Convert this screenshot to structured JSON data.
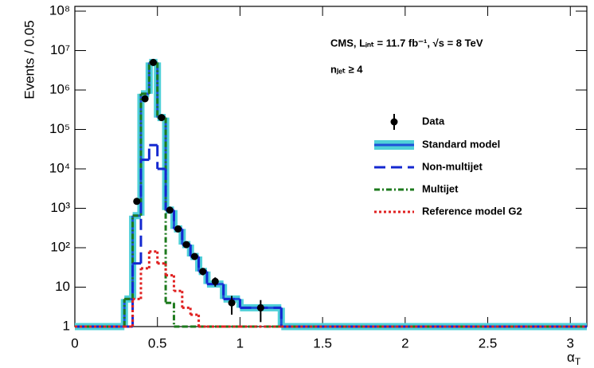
{
  "chart_data": {
    "type": "histogram",
    "annotations": [
      "CMS, Lᵢₙₜ = 11.7 fb⁻¹, √s = 8 TeV",
      "nⱼₑₜ ≥ 4"
    ],
    "xlabel": "αT",
    "ylabel": "Events / 0.05",
    "log_y": true,
    "xlim": [
      0,
      3.1
    ],
    "xticks": [
      0,
      0.5,
      1,
      1.5,
      2,
      2.5,
      3
    ],
    "ylim": [
      1,
      100000000
    ],
    "yticks": [
      1,
      10,
      {
        "value": 100,
        "label": "10²"
      },
      {
        "value": 1000,
        "label": "10³"
      },
      {
        "value": 10000,
        "label": "10⁴"
      },
      {
        "value": 100000,
        "label": "10⁵"
      },
      {
        "value": 1000000,
        "label": "10⁶"
      },
      {
        "value": 10000000,
        "label": "10⁷"
      },
      {
        "value": 100000000,
        "label": "10⁸"
      }
    ],
    "bins": [
      0,
      0.3,
      0.35,
      0.4,
      0.45,
      0.5,
      0.55,
      0.6,
      0.65,
      0.7,
      0.75,
      0.8,
      0.9,
      1.0,
      1.25,
      3.1
    ],
    "series": [
      {
        "name": "Standard model",
        "color": "#1e50d8",
        "band_color": "#4fd0d8",
        "style": "solid",
        "values": [
          1,
          5,
          650,
          800000,
          5000000,
          200000,
          900,
          300,
          120,
          60,
          25,
          12,
          5,
          3,
          1
        ]
      },
      {
        "name": "Non-multijet",
        "color": "#1428d0",
        "style": "dashed",
        "values": [
          1,
          1,
          40,
          17000,
          40000,
          10000,
          900,
          300,
          120,
          60,
          25,
          12,
          5,
          3,
          1
        ]
      },
      {
        "name": "Multijet",
        "color": "#1d7a1d",
        "style": "dashdot",
        "values": [
          1,
          5,
          650,
          800000,
          5000000,
          200000,
          4,
          1,
          1,
          1,
          1,
          1,
          1,
          1,
          1
        ]
      },
      {
        "name": "Reference model G2",
        "color": "#e02020",
        "style": "dotted",
        "values": [
          1,
          1,
          5,
          30,
          80,
          40,
          20,
          8,
          3,
          2,
          1,
          1,
          1,
          1,
          1
        ]
      }
    ],
    "data_points": {
      "name": "Data",
      "color": "#000000",
      "x": [
        0.375,
        0.425,
        0.475,
        0.525,
        0.575,
        0.625,
        0.675,
        0.725,
        0.775,
        0.85,
        0.95,
        1.125
      ],
      "values": [
        1500,
        600000,
        5000000,
        200000,
        900,
        300,
        120,
        60,
        25,
        14,
        4,
        3
      ],
      "errors": [
        39,
        775,
        2236,
        447,
        30,
        17,
        11,
        8,
        5,
        3.7,
        2,
        1.7
      ]
    }
  }
}
